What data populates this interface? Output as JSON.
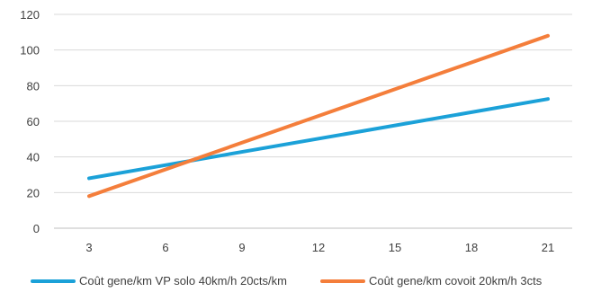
{
  "chart_data": {
    "type": "line",
    "title": "",
    "xlabel": "",
    "ylabel": "",
    "x": [
      3,
      21
    ],
    "xticks": [
      3,
      6,
      9,
      12,
      15,
      18,
      21
    ],
    "yticks": [
      0,
      20,
      40,
      60,
      80,
      100,
      120
    ],
    "ylim": [
      0,
      120
    ],
    "grid": "horizontal",
    "legend": "bottom",
    "series": [
      {
        "name": "Coût gene/km VP solo 40km/h 20cts/km",
        "color": "#1ba1d8",
        "values": [
          28,
          72.5
        ]
      },
      {
        "name": "Coût gene/km covoit 20km/h 3cts",
        "color": "#f47e3b",
        "values": [
          18,
          108
        ]
      }
    ]
  }
}
